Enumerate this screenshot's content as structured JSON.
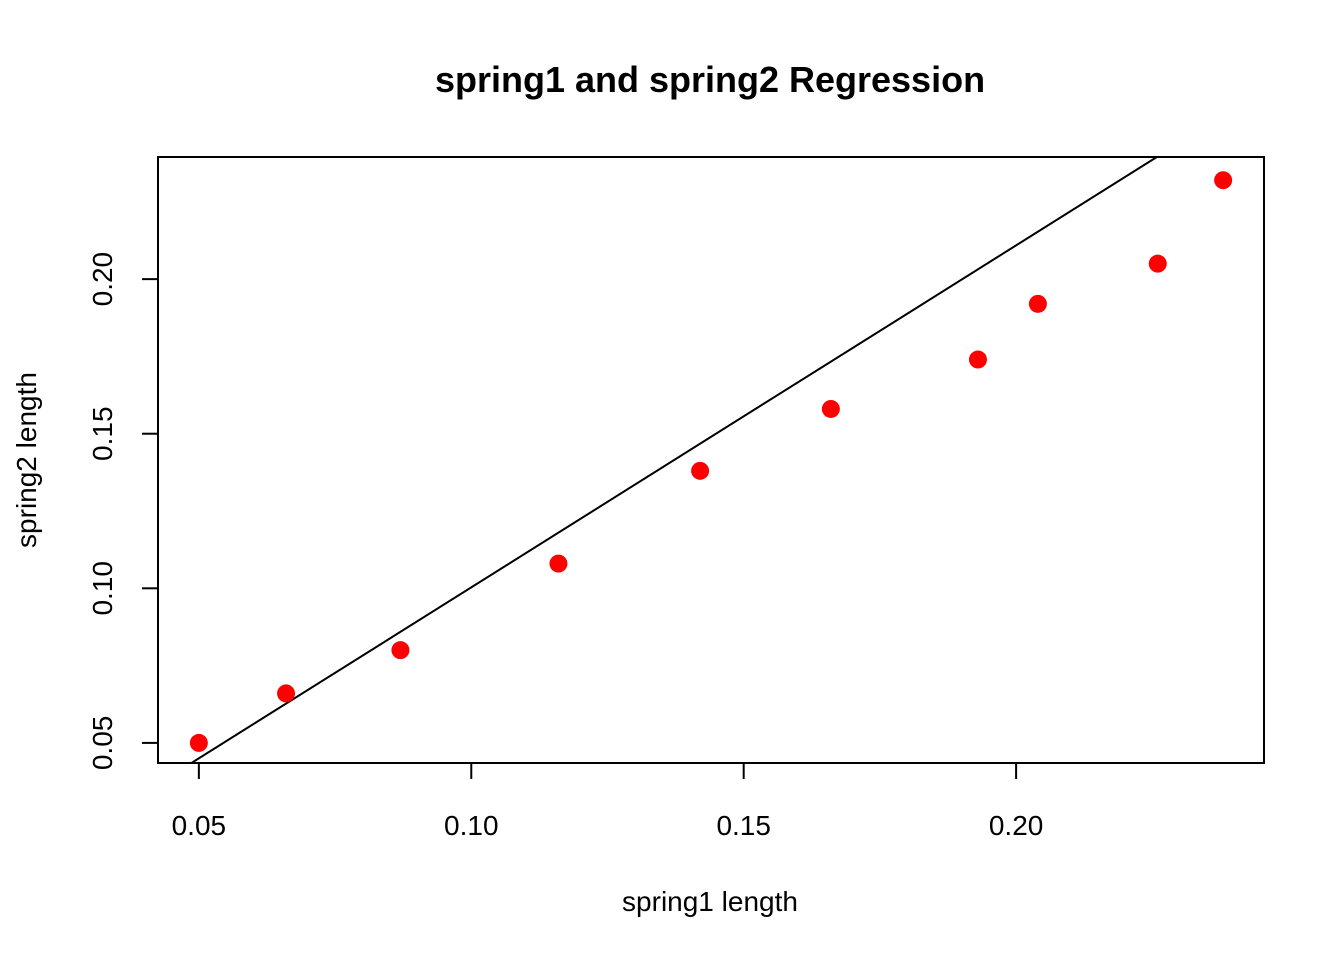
{
  "chart_data": {
    "type": "scatter",
    "title": "spring1 and spring2 Regression",
    "xlabel": "spring1 length",
    "ylabel": "spring2 length",
    "xlim": [
      0.0425,
      0.2455
    ],
    "ylim": [
      0.0435,
      0.2395
    ],
    "x_ticks": [
      0.05,
      0.1,
      0.15,
      0.2
    ],
    "x_tick_labels": [
      "0.05",
      "0.10",
      "0.15",
      "0.20"
    ],
    "y_ticks": [
      0.05,
      0.1,
      0.15,
      0.2
    ],
    "y_tick_labels": [
      "0.05",
      "0.10",
      "0.15",
      "0.20"
    ],
    "grid": false,
    "point_color": "#ff0000",
    "line_color": "#000000",
    "points": [
      {
        "x": 0.05,
        "y": 0.05
      },
      {
        "x": 0.066,
        "y": 0.066
      },
      {
        "x": 0.087,
        "y": 0.08
      },
      {
        "x": 0.116,
        "y": 0.108
      },
      {
        "x": 0.142,
        "y": 0.138
      },
      {
        "x": 0.166,
        "y": 0.158
      },
      {
        "x": 0.193,
        "y": 0.174
      },
      {
        "x": 0.204,
        "y": 0.192
      },
      {
        "x": 0.226,
        "y": 0.205
      },
      {
        "x": 0.238,
        "y": 0.232
      }
    ],
    "regression_line": {
      "intercept": -0.0103,
      "slope": 1.1061
    }
  }
}
